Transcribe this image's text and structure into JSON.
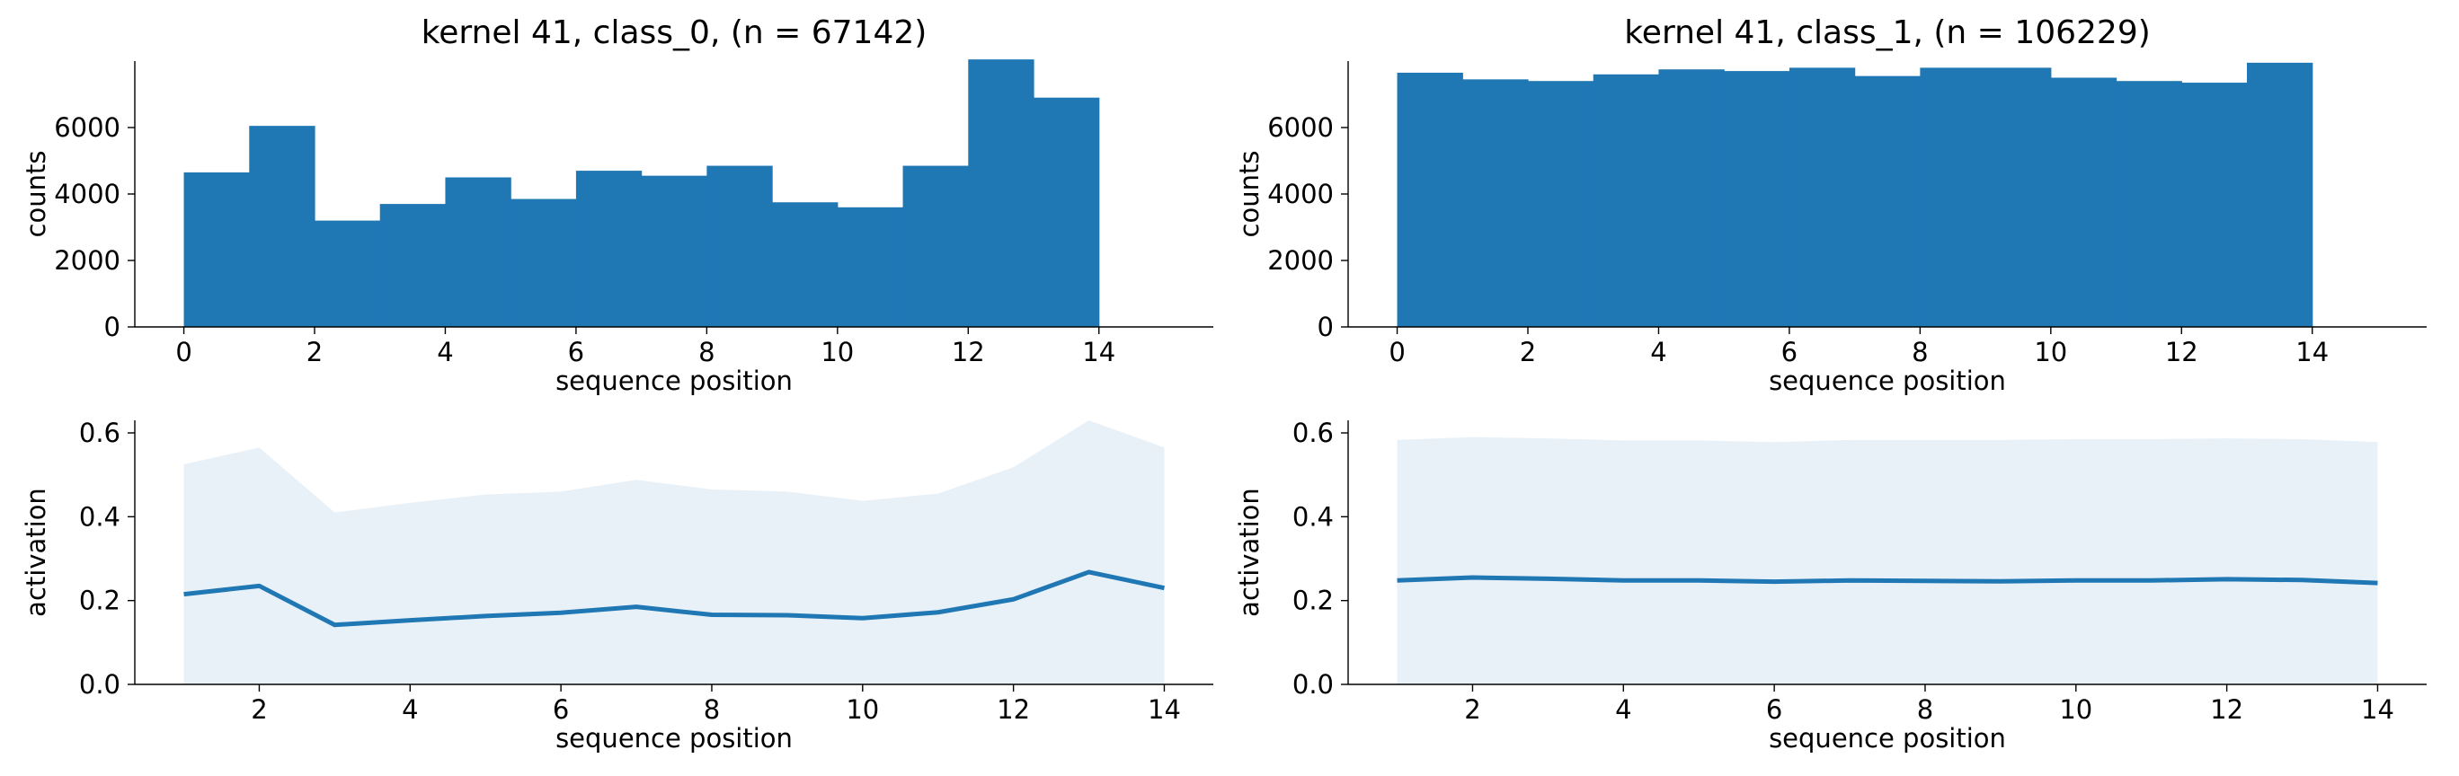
{
  "colors": {
    "bar": "#1f77b4",
    "line": "#1f77b4",
    "band": "#dce8f4",
    "axis": "#000000"
  },
  "chart_data": [
    {
      "id": "hist_class0",
      "type": "bar",
      "title": "kernel 41, class_0, (n = 67142)",
      "xlabel": "sequence position",
      "ylabel": "counts",
      "xlim": [
        -0.75,
        15.75
      ],
      "ylim": [
        0,
        8000
      ],
      "xticks": [
        0,
        2,
        4,
        6,
        8,
        10,
        12,
        14
      ],
      "yticks": [
        0,
        2000,
        4000,
        6000
      ],
      "bin_edges": [
        0,
        1,
        2,
        3,
        4,
        5,
        6,
        7,
        8,
        9,
        10,
        11,
        12,
        13,
        14
      ],
      "values": [
        4650,
        6050,
        3200,
        3700,
        4500,
        3850,
        4700,
        4550,
        4850,
        3750,
        3600,
        4850,
        8050,
        6900
      ]
    },
    {
      "id": "hist_class1",
      "type": "bar",
      "title": "kernel 41, class_1, (n = 106229)",
      "xlabel": "sequence position",
      "ylabel": "counts",
      "xlim": [
        -0.75,
        15.75
      ],
      "ylim": [
        0,
        8000
      ],
      "xticks": [
        0,
        2,
        4,
        6,
        8,
        10,
        12,
        14
      ],
      "yticks": [
        0,
        2000,
        4000,
        6000
      ],
      "bin_edges": [
        0,
        1,
        2,
        3,
        4,
        5,
        6,
        7,
        8,
        9,
        10,
        11,
        12,
        13,
        14
      ],
      "values": [
        7650,
        7450,
        7400,
        7600,
        7750,
        7700,
        7800,
        7550,
        7800,
        7800,
        7500,
        7400,
        7350,
        7950
      ]
    },
    {
      "id": "act_class0",
      "type": "area",
      "title": "",
      "xlabel": "sequence position",
      "ylabel": "activation",
      "xlim": [
        0.35,
        14.65
      ],
      "ylim": [
        0,
        0.63
      ],
      "xticks": [
        2,
        4,
        6,
        8,
        10,
        12,
        14
      ],
      "yticks": [
        0.0,
        0.2,
        0.4,
        0.6
      ],
      "ytick_labels": [
        "0.0",
        "0.2",
        "0.4",
        "0.6"
      ],
      "x": [
        1,
        2,
        3,
        4,
        5,
        6,
        7,
        8,
        9,
        10,
        11,
        12,
        13,
        14
      ],
      "mean": [
        0.215,
        0.235,
        0.142,
        0.153,
        0.163,
        0.171,
        0.185,
        0.166,
        0.165,
        0.158,
        0.172,
        0.203,
        0.268,
        0.23
      ],
      "lower": [
        0,
        0,
        0,
        0,
        0,
        0,
        0,
        0,
        0,
        0,
        0,
        0,
        0,
        0
      ],
      "upper": [
        0.525,
        0.565,
        0.41,
        0.433,
        0.453,
        0.46,
        0.488,
        0.465,
        0.46,
        0.438,
        0.455,
        0.518,
        0.63,
        0.565
      ]
    },
    {
      "id": "act_class1",
      "type": "area",
      "title": "",
      "xlabel": "sequence position",
      "ylabel": "activation",
      "xlim": [
        0.35,
        14.65
      ],
      "ylim": [
        0,
        0.63
      ],
      "xticks": [
        2,
        4,
        6,
        8,
        10,
        12,
        14
      ],
      "yticks": [
        0.0,
        0.2,
        0.4,
        0.6
      ],
      "ytick_labels": [
        "0.0",
        "0.2",
        "0.4",
        "0.6"
      ],
      "x": [
        1,
        2,
        3,
        4,
        5,
        6,
        7,
        8,
        9,
        10,
        11,
        12,
        13,
        14
      ],
      "mean": [
        0.248,
        0.255,
        0.252,
        0.248,
        0.248,
        0.245,
        0.248,
        0.247,
        0.246,
        0.248,
        0.248,
        0.251,
        0.249,
        0.242
      ],
      "lower": [
        0,
        0,
        0,
        0,
        0,
        0,
        0,
        0,
        0,
        0,
        0,
        0,
        0,
        0
      ],
      "upper": [
        0.583,
        0.59,
        0.587,
        0.582,
        0.582,
        0.578,
        0.583,
        0.583,
        0.583,
        0.585,
        0.585,
        0.587,
        0.585,
        0.578
      ]
    }
  ]
}
